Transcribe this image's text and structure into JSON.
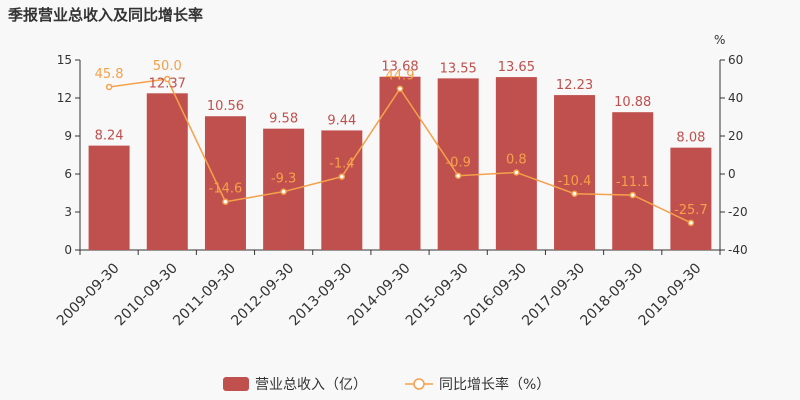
{
  "chart_data": {
    "type": "bar+line",
    "title": "季报营业总收入及同比增长率",
    "categories": [
      "2009-09-30",
      "2010-09-30",
      "2011-09-30",
      "2012-09-30",
      "2013-09-30",
      "2014-09-30",
      "2015-09-30",
      "2016-09-30",
      "2017-09-30",
      "2018-09-30",
      "2019-09-30"
    ],
    "series": [
      {
        "name": "营业总收入（亿）",
        "kind": "bar",
        "axis": "left",
        "color": "#c0504d",
        "values": [
          8.24,
          12.37,
          10.56,
          9.58,
          9.44,
          13.68,
          13.55,
          13.65,
          12.23,
          10.88,
          8.08
        ]
      },
      {
        "name": "同比增长率（%）",
        "kind": "line",
        "axis": "right",
        "color": "#f5a04a",
        "values": [
          45.8,
          50.0,
          -14.6,
          -9.3,
          -1.4,
          44.9,
          -0.9,
          0.8,
          -10.4,
          -11.1,
          -25.7
        ]
      }
    ],
    "y_left": {
      "min": 0,
      "max": 15,
      "ticks": [
        0,
        3,
        6,
        9,
        12,
        15
      ]
    },
    "y_right": {
      "min": -40,
      "max": 60,
      "ticks": [
        -40,
        -20,
        0,
        20,
        40,
        60
      ],
      "unit": "%"
    },
    "legend_position": "bottom",
    "grid": false
  }
}
